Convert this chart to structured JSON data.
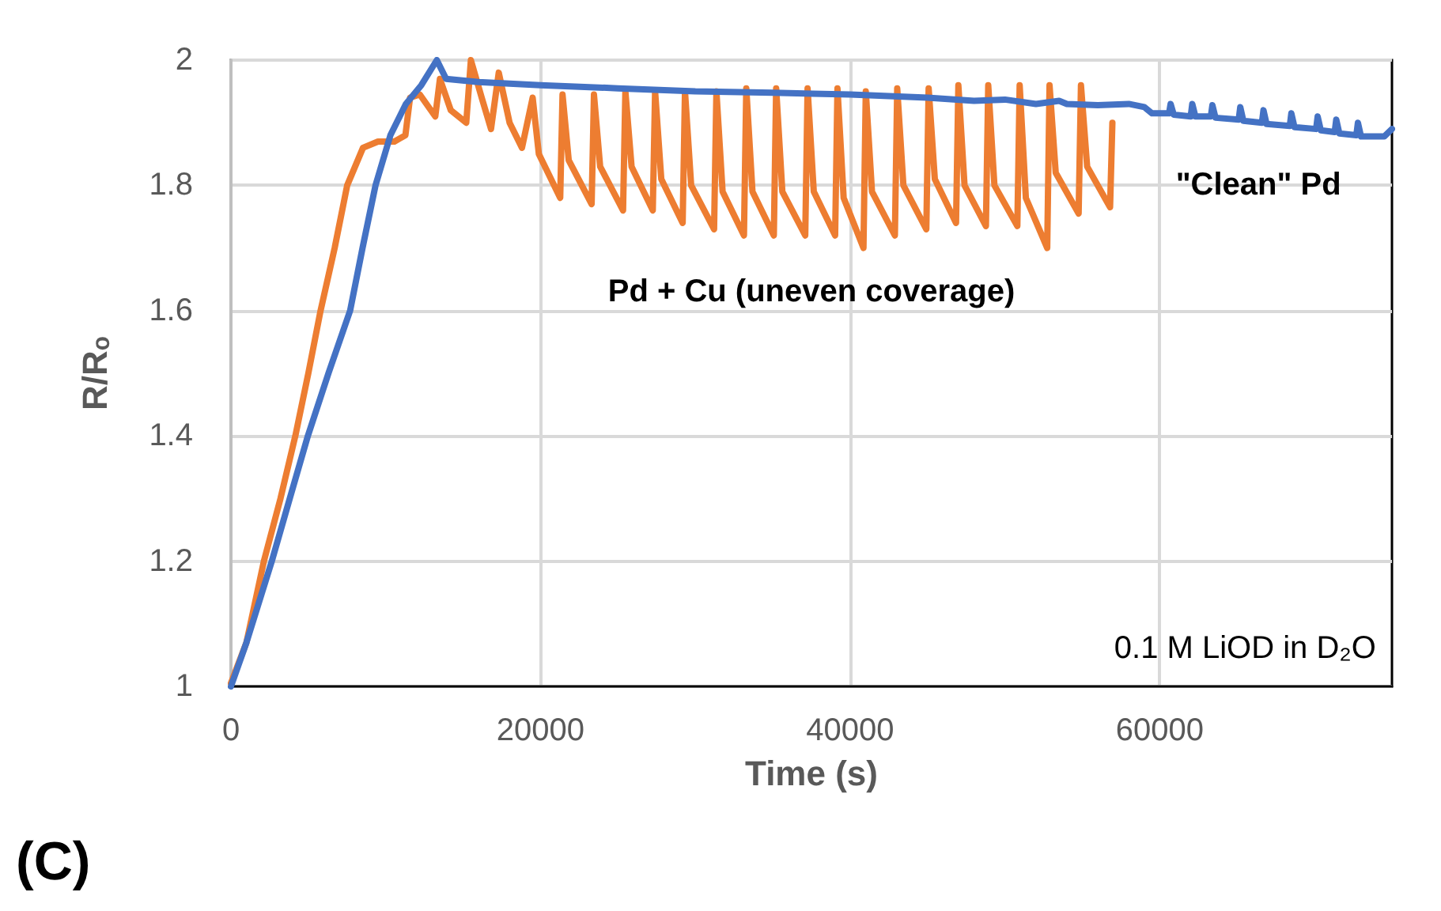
{
  "chart_data": {
    "type": "line",
    "xlabel": "Time (s)",
    "ylabel": "R/Rₒ",
    "series": [
      {
        "name": "Pd + Cu (uneven coverage)",
        "color": "#ed7d31",
        "x": [
          0,
          1000,
          2130,
          3200,
          4160,
          5000,
          5790,
          6700,
          7510,
          8530,
          9500,
          10560,
          11270,
          11570,
          12200,
          13200,
          13500,
          14200,
          15200,
          15500,
          16200,
          16800,
          17300,
          18000,
          18800,
          19490,
          19890,
          21270,
          21420,
          21820,
          23300,
          23450,
          23850,
          25330,
          25480,
          25880,
          27250,
          27400,
          27800,
          29180,
          29330,
          29730,
          31210,
          31360,
          31760,
          33140,
          33290,
          33690,
          35070,
          35220,
          35620,
          37100,
          37250,
          37650,
          39030,
          39180,
          39580,
          40860,
          41010,
          41410,
          42890,
          43040,
          43440,
          44920,
          45070,
          45470,
          46840,
          46990,
          47390,
          48770,
          48920,
          49320,
          50800,
          50950,
          51350,
          52730,
          52880,
          53280,
          54760,
          54910,
          55310,
          56790,
          56940
        ],
        "values": [
          1.005,
          1.07,
          1.2,
          1.3,
          1.4,
          1.5,
          1.6,
          1.7,
          1.8,
          1.86,
          1.87,
          1.87,
          1.88,
          1.94,
          1.945,
          1.91,
          1.97,
          1.92,
          1.9,
          2.0,
          1.94,
          1.89,
          1.98,
          1.9,
          1.86,
          1.94,
          1.85,
          1.78,
          1.945,
          1.84,
          1.77,
          1.945,
          1.83,
          1.76,
          1.95,
          1.83,
          1.76,
          1.95,
          1.81,
          1.74,
          1.95,
          1.8,
          1.73,
          1.95,
          1.79,
          1.72,
          1.955,
          1.79,
          1.72,
          1.955,
          1.79,
          1.72,
          1.955,
          1.79,
          1.72,
          1.955,
          1.78,
          1.7,
          1.95,
          1.79,
          1.72,
          1.955,
          1.8,
          1.73,
          1.955,
          1.81,
          1.74,
          1.96,
          1.8,
          1.735,
          1.96,
          1.8,
          1.735,
          1.96,
          1.78,
          1.7,
          1.96,
          1.82,
          1.755,
          1.96,
          1.83,
          1.765,
          1.9
        ]
      },
      {
        "name": "\"Clean\" Pd",
        "color": "#4472c4",
        "x": [
          0,
          1000,
          2640,
          3800,
          4970,
          6300,
          7700,
          8500,
          9340,
          10300,
          11300,
          12300,
          13300,
          13900,
          16000,
          20000,
          25000,
          30000,
          35000,
          40000,
          45000,
          48000,
          50000,
          52000,
          53500,
          54000,
          56000,
          58000,
          59000,
          59500,
          60600,
          60700,
          60900,
          62000,
          62100,
          62300,
          63300,
          63400,
          63600,
          65100,
          65200,
          65400,
          66600,
          66700,
          66900,
          68400,
          68500,
          68700,
          70100,
          70200,
          70400,
          71300,
          71400,
          71600,
          72700,
          72800,
          73000,
          74500,
          75000
        ],
        "values": [
          1.0,
          1.07,
          1.2,
          1.3,
          1.4,
          1.5,
          1.6,
          1.7,
          1.8,
          1.88,
          1.93,
          1.96,
          2.0,
          1.97,
          1.965,
          1.96,
          1.955,
          1.95,
          1.948,
          1.945,
          1.94,
          1.935,
          1.937,
          1.93,
          1.935,
          1.93,
          1.928,
          1.93,
          1.925,
          1.915,
          1.915,
          1.93,
          1.913,
          1.91,
          1.93,
          1.91,
          1.91,
          1.928,
          1.908,
          1.905,
          1.925,
          1.903,
          1.9,
          1.92,
          1.898,
          1.895,
          1.915,
          1.893,
          1.89,
          1.91,
          1.888,
          1.885,
          1.905,
          1.883,
          1.88,
          1.9,
          1.878,
          1.878,
          1.89
        ]
      }
    ],
    "xlim": [
      0,
      75000
    ],
    "xticks": [
      0,
      20000,
      40000,
      60000
    ],
    "ylim": [
      1,
      2
    ],
    "yticks": [
      1,
      1.2,
      1.4,
      1.6,
      1.8,
      2
    ],
    "grid": true,
    "legend": false,
    "marker": "none",
    "line_style": "solid",
    "annotations": [
      "0.1 M LiOD in D₂O",
      "(C)"
    ]
  }
}
